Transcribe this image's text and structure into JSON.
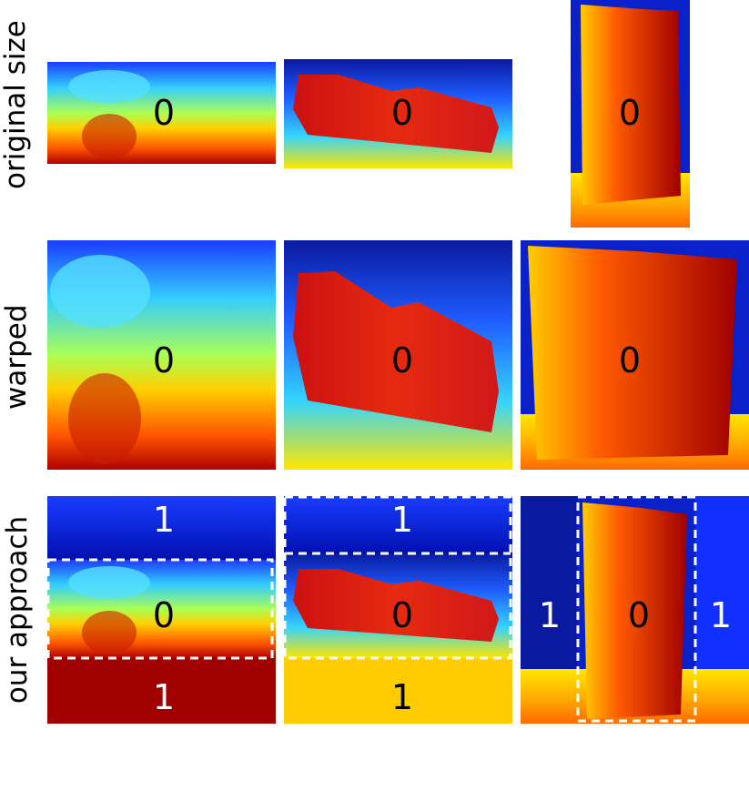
{
  "row_labels": {
    "original": "original size",
    "warped": "warped",
    "approach": "our approach"
  },
  "labels": {
    "region": "0",
    "padding": "1"
  },
  "colors": {
    "deep_blue": "#000a8c",
    "blue": "#1a3cff",
    "cyan": "#33ccff",
    "yellow": "#ffe600",
    "orange": "#ff8c00",
    "red": "#e60000",
    "dark_red": "#8c0000",
    "dashed_box": "#ffffff"
  }
}
